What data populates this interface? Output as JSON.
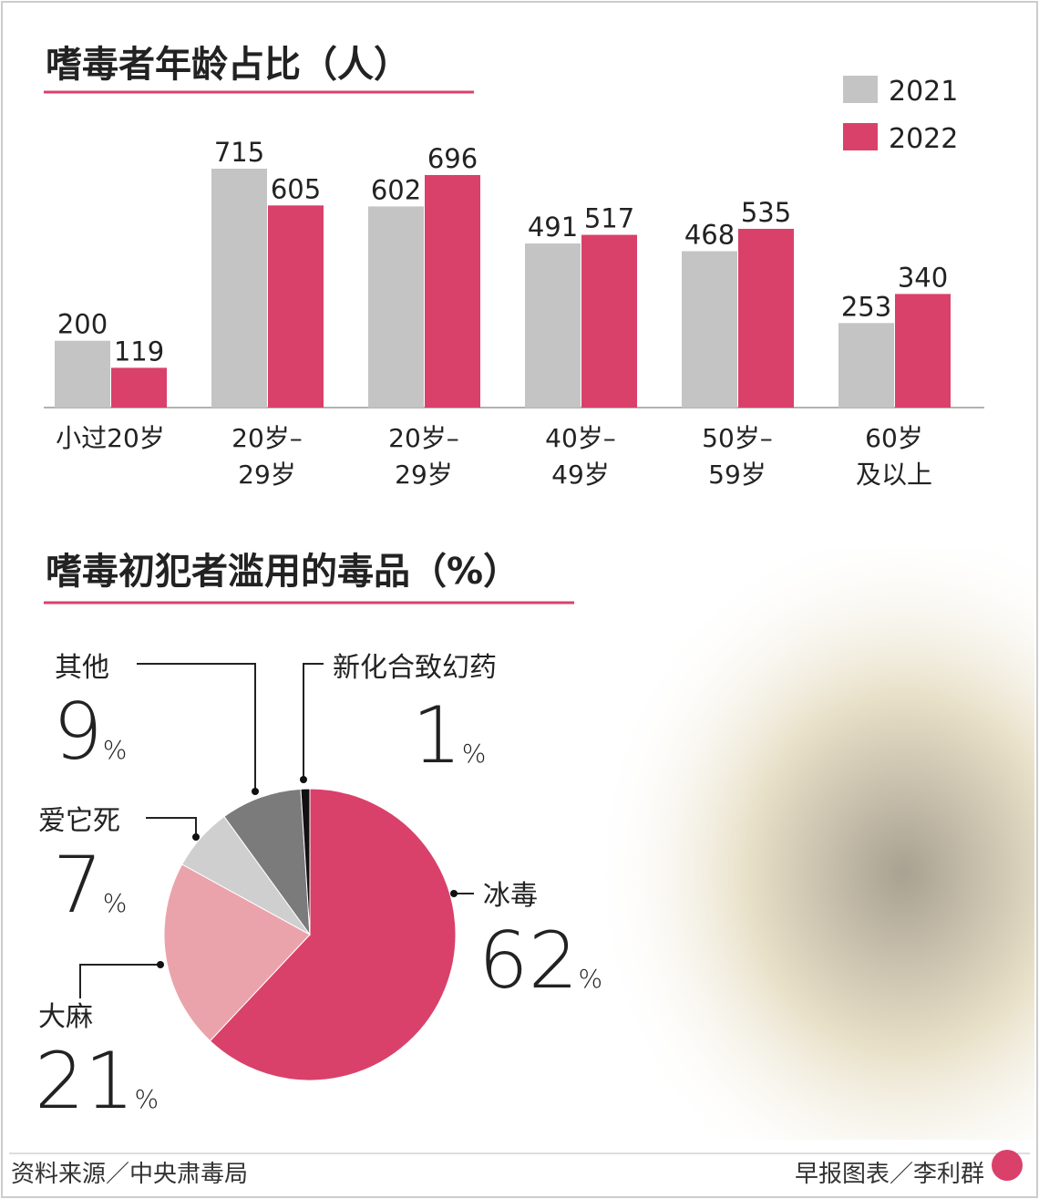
{
  "chart_data": [
    {
      "type": "bar",
      "title": "嗜毒者年龄占比（人）",
      "categories": [
        [
          "小过20岁"
        ],
        [
          "20岁–",
          "29岁"
        ],
        [
          "20岁–",
          "29岁"
        ],
        [
          "40岁–",
          "49岁"
        ],
        [
          "50岁–",
          "59岁"
        ],
        [
          "60岁",
          "及以上"
        ]
      ],
      "series": [
        {
          "name": "2021",
          "color": "#c4c4c4",
          "values": [
            200,
            715,
            602,
            491,
            468,
            253
          ]
        },
        {
          "name": "2022",
          "color": "#d9416a",
          "values": [
            119,
            605,
            696,
            517,
            535,
            340
          ]
        }
      ]
    },
    {
      "type": "pie",
      "title": "嗜毒初犯者滥用的毒品（%）",
      "categories": [
        "冰毒",
        "大麻",
        "爱它死",
        "其他",
        "新化合致幻药"
      ],
      "values": [
        62,
        21,
        7,
        9,
        1
      ],
      "value_labels": [
        "62%",
        "21%",
        "7%",
        "9%",
        "1%"
      ],
      "colors": [
        "#d9416a",
        "#eba3ab",
        "#cfcfcf",
        "#7b7b7b",
        "#111111"
      ]
    }
  ],
  "footer": {
    "source": "资料来源／中央肃毒局",
    "credit": "早报图表／李利群"
  }
}
